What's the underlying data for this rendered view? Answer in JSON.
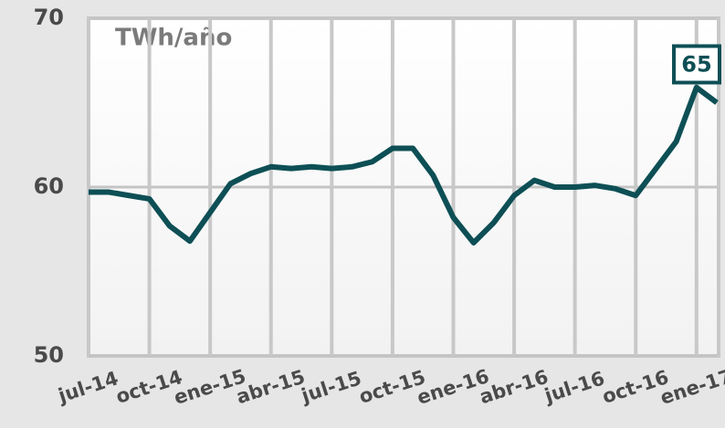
{
  "chart_data": {
    "type": "line",
    "ylabel": "TWh/año",
    "categories": [
      "jul-14",
      null,
      null,
      "oct-14",
      null,
      null,
      "ene-15",
      null,
      null,
      "abr-15",
      null,
      null,
      "jul-15",
      null,
      null,
      "oct-15",
      null,
      null,
      "ene-16",
      null,
      null,
      "abr-16",
      null,
      null,
      "jul-16",
      null,
      null,
      "oct-16",
      null,
      null,
      "ene-17",
      null
    ],
    "series": [
      {
        "color": "#0d4f55",
        "values": [
          59.7,
          59.7,
          59.5,
          59.3,
          57.7,
          56.8,
          58.5,
          60.2,
          60.8,
          61.2,
          61.1,
          61.2,
          61.1,
          61.2,
          61.5,
          62.3,
          62.3,
          60.7,
          58.2,
          56.7,
          57.9,
          59.5,
          60.4,
          60.0,
          60.0,
          60.1,
          59.9,
          59.5,
          61.1,
          62.7,
          65.9,
          65
        ],
        "value_labels": [
          null,
          null,
          null,
          null,
          null,
          null,
          null,
          null,
          null,
          null,
          null,
          null,
          null,
          null,
          null,
          null,
          null,
          null,
          null,
          null,
          null,
          null,
          null,
          null,
          null,
          null,
          null,
          null,
          null,
          null,
          null,
          "65"
        ]
      }
    ],
    "ylim": [
      50,
      70
    ],
    "yticks": [
      50,
      60,
      70
    ],
    "grid": true
  }
}
